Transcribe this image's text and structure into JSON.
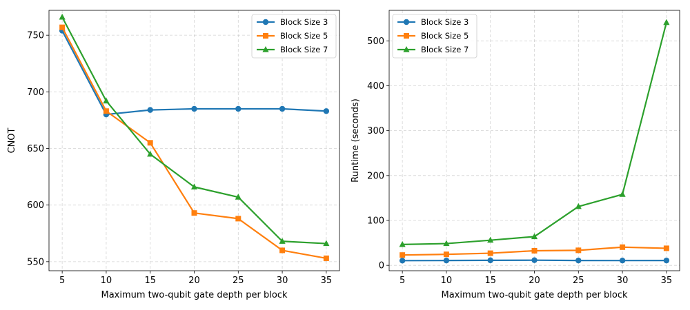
{
  "chart_data": [
    {
      "type": "line",
      "xlabel": "Maximum two-qubit gate depth per block",
      "ylabel": "CNOT",
      "x": [
        5,
        10,
        15,
        20,
        25,
        30,
        35
      ],
      "xticks": [
        5,
        10,
        15,
        20,
        25,
        30,
        35
      ],
      "xlim": [
        3.5,
        36.5
      ],
      "ylim": [
        542,
        772
      ],
      "yticks": [
        550,
        600,
        650,
        700,
        750
      ],
      "grid": true,
      "legend_position": "upper right",
      "series": [
        {
          "name": "Block Size 3",
          "color": "#1f77b4",
          "marker": "circle",
          "values": [
            754,
            680,
            684,
            685,
            685,
            685,
            683
          ]
        },
        {
          "name": "Block Size 5",
          "color": "#ff7f0e",
          "marker": "square",
          "values": [
            757,
            683,
            655,
            593,
            588,
            560,
            553
          ]
        },
        {
          "name": "Block Size 7",
          "color": "#2ca02c",
          "marker": "triangle",
          "values": [
            766,
            692,
            645,
            616,
            607,
            568,
            566
          ]
        }
      ]
    },
    {
      "type": "line",
      "xlabel": "Maximum two-qubit gate depth per block",
      "ylabel": "Runtime (seconds)",
      "x": [
        5,
        10,
        15,
        20,
        25,
        30,
        35
      ],
      "xticks": [
        5,
        10,
        15,
        20,
        25,
        30,
        35
      ],
      "xlim": [
        3.5,
        36.5
      ],
      "ylim": [
        -12,
        568
      ],
      "yticks": [
        0,
        100,
        200,
        300,
        400,
        500
      ],
      "grid": true,
      "legend_position": "upper left",
      "series": [
        {
          "name": "Block Size 3",
          "color": "#1f77b4",
          "marker": "circle",
          "values": [
            10.5,
            10.8,
            11.2,
            11.5,
            10.8,
            10.7,
            10.8
          ]
        },
        {
          "name": "Block Size 5",
          "color": "#ff7f0e",
          "marker": "square",
          "values": [
            23,
            24.5,
            27,
            32.5,
            33.5,
            40.5,
            38
          ]
        },
        {
          "name": "Block Size 7",
          "color": "#2ca02c",
          "marker": "triangle",
          "values": [
            46.5,
            48.5,
            56,
            64,
            131,
            158,
            541
          ]
        }
      ]
    }
  ]
}
